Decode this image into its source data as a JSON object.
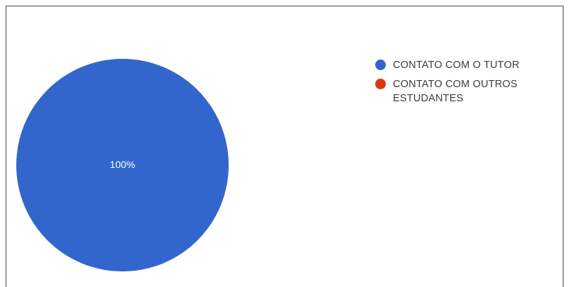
{
  "chart_data": {
    "type": "pie",
    "slices": [
      {
        "label": "CONTATO COM O TUTOR",
        "value": 100,
        "color": "#3366cc"
      },
      {
        "label": "CONTATO COM OUTROS ESTUDANTES",
        "value": 0,
        "color": "#dc3912"
      }
    ],
    "data_labels": [
      "100%"
    ],
    "legend_position": "right"
  },
  "legend": {
    "items": [
      {
        "label": "CONTATO COM O TUTOR",
        "color": "#3366cc"
      },
      {
        "label": "CONTATO COM OUTROS ESTUDANTES",
        "color": "#dc3912"
      }
    ]
  }
}
